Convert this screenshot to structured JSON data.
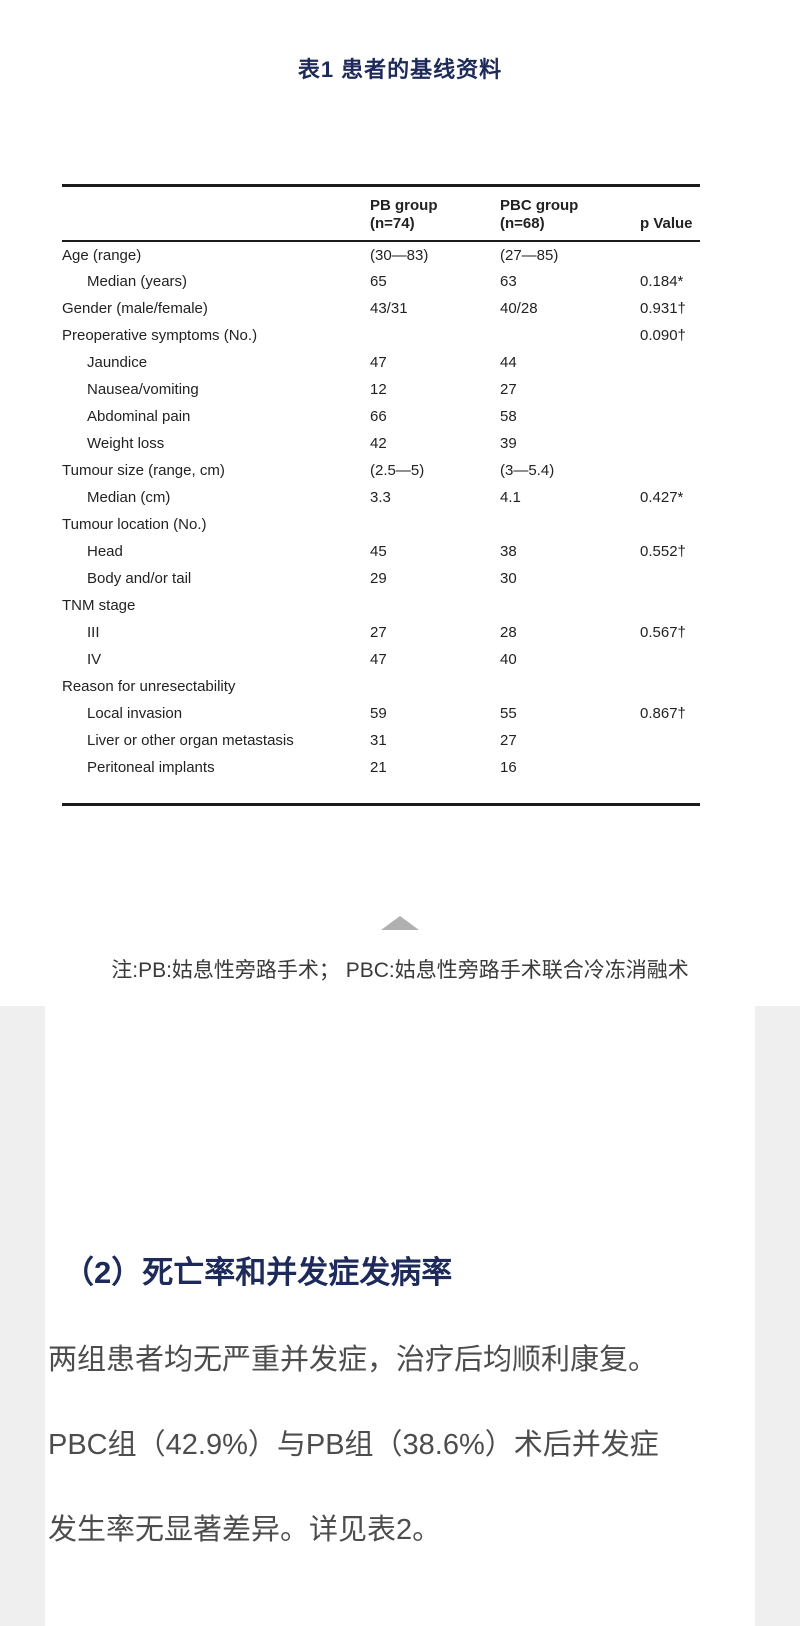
{
  "article": {
    "table_caption": "表1 患者的基线资料",
    "note": "注:PB:姑息性旁路手术； PBC:姑息性旁路手术联合冷冻消融术",
    "section_heading": "（2）死亡率和并发症发病率",
    "paragraph_lines": [
      "两组患者均无严重并发症，治疗后均顺利康复。",
      "PBC组（42.9%）与PB组（38.6%）术后并发症",
      "发生率无显著差异。详见表2。"
    ],
    "collapse_icon": "up-triangle-icon",
    "colors": {
      "heading_navy": "#1e2a5a",
      "body_gray": "#4d4d4d",
      "note_gray": "#3a3a3a",
      "triangle_gray": "#b0b0b0",
      "table_rule": "#1b1b1b",
      "page_margin_gray": "#efefef"
    }
  },
  "table": {
    "header": {
      "pb_group": [
        "PB group",
        "(n=74)"
      ],
      "pbc_group": [
        "PBC group",
        "(n=68)"
      ],
      "p_value": "p Value"
    },
    "rows": [
      {
        "label": "Age (range)",
        "indent": false,
        "pb": "(30—83)",
        "pbc": "(27—85)",
        "p": ""
      },
      {
        "label": "Median (years)",
        "indent": true,
        "pb": "65",
        "pbc": "63",
        "p": "0.184*"
      },
      {
        "label": "Gender (male/female)",
        "indent": false,
        "pb": "43/31",
        "pbc": "40/28",
        "p": "0.931†"
      },
      {
        "label": "Preoperative symptoms (No.)",
        "indent": false,
        "pb": "",
        "pbc": "",
        "p": "0.090†"
      },
      {
        "label": "Jaundice",
        "indent": true,
        "pb": "47",
        "pbc": "44",
        "p": ""
      },
      {
        "label": "Nausea/vomiting",
        "indent": true,
        "pb": "12",
        "pbc": "27",
        "p": ""
      },
      {
        "label": "Abdominal pain",
        "indent": true,
        "pb": "66",
        "pbc": "58",
        "p": ""
      },
      {
        "label": "Weight loss",
        "indent": true,
        "pb": "42",
        "pbc": "39",
        "p": ""
      },
      {
        "label": "Tumour size (range, cm)",
        "indent": false,
        "pb": "(2.5—5)",
        "pbc": "(3—5.4)",
        "p": ""
      },
      {
        "label": "Median (cm)",
        "indent": true,
        "pb": "3.3",
        "pbc": "4.1",
        "p": "0.427*"
      },
      {
        "label": "Tumour location (No.)",
        "indent": false,
        "pb": "",
        "pbc": "",
        "p": ""
      },
      {
        "label": "Head",
        "indent": true,
        "pb": "45",
        "pbc": "38",
        "p": "0.552†"
      },
      {
        "label": "Body and/or tail",
        "indent": true,
        "pb": "29",
        "pbc": "30",
        "p": ""
      },
      {
        "label": "TNM stage",
        "indent": false,
        "pb": "",
        "pbc": "",
        "p": ""
      },
      {
        "label": "III",
        "indent": true,
        "pb": "27",
        "pbc": "28",
        "p": "0.567†"
      },
      {
        "label": "IV",
        "indent": true,
        "pb": "47",
        "pbc": "40",
        "p": ""
      },
      {
        "label": "Reason for unresectability",
        "indent": false,
        "pb": "",
        "pbc": "",
        "p": ""
      },
      {
        "label": "Local invasion",
        "indent": true,
        "pb": "59",
        "pbc": "55",
        "p": "0.867†"
      },
      {
        "label": "Liver or other organ metastasis",
        "indent": true,
        "pb": "31",
        "pbc": "27",
        "p": ""
      },
      {
        "label": "Peritoneal implants",
        "indent": true,
        "pb": "21",
        "pbc": "16",
        "p": ""
      }
    ]
  }
}
